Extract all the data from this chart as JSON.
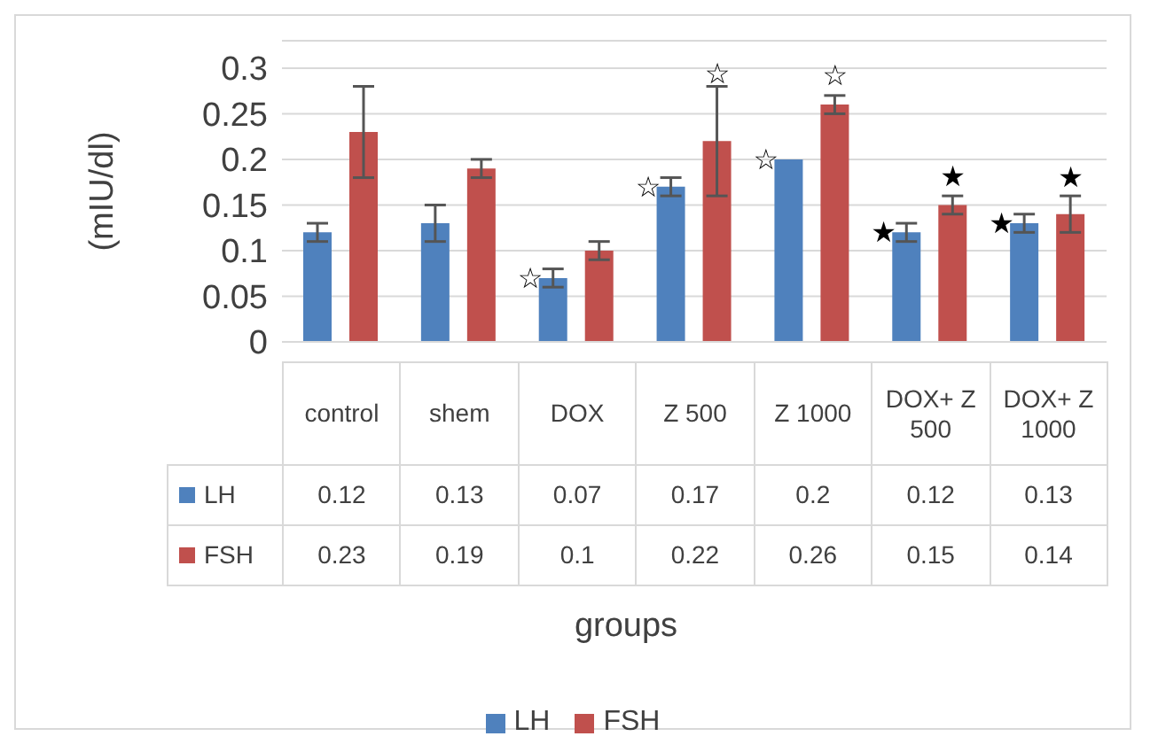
{
  "chart_data": {
    "type": "bar",
    "xlabel": "groups",
    "ylabel": "(mIU/dl)",
    "categories": [
      "control",
      "shem",
      "DOX",
      "Z 500",
      "Z 1000",
      "DOX+ Z 500",
      "DOX+ Z 1000"
    ],
    "series": [
      {
        "name": "LH",
        "color": "#4f81bd",
        "values": [
          0.12,
          0.13,
          0.07,
          0.17,
          0.2,
          0.12,
          0.13
        ],
        "errors": [
          0.01,
          0.02,
          0.01,
          0.01,
          0,
          0.01,
          0.01
        ]
      },
      {
        "name": "FSH",
        "color": "#c0504d",
        "values": [
          0.23,
          0.19,
          0.1,
          0.22,
          0.26,
          0.15,
          0.14
        ],
        "errors": [
          0.05,
          0.01,
          0.01,
          0.06,
          0.01,
          0.01,
          0.02
        ]
      }
    ],
    "ylim": [
      0,
      0.33
    ],
    "yticks": [
      0,
      0.05,
      0.1,
      0.15,
      0.2,
      0.25,
      0.3
    ],
    "grid": "y",
    "legend": "bottom",
    "data_labels": true,
    "annotations": [
      {
        "text": "☆",
        "x": "DOX",
        "y": 0.07
      },
      {
        "text": "☆",
        "x": "Z 500",
        "y": 0.17
      },
      {
        "text": "☆",
        "x": "Z 500",
        "y": 0.22
      },
      {
        "text": "☆",
        "x": "Z 1000",
        "y": 0.2
      },
      {
        "text": "☆",
        "x": "Z 1000",
        "y": 0.26
      },
      {
        "text": "★",
        "x": "DOX+ Z 500",
        "y": 0.12
      },
      {
        "text": "★",
        "x": "DOX+ Z 500",
        "y": 0.15
      },
      {
        "text": "★",
        "x": "DOX+ Z 1000",
        "y": 0.13
      },
      {
        "text": "★",
        "x": "DOX+ Z 1000",
        "y": 0.14
      }
    ]
  }
}
